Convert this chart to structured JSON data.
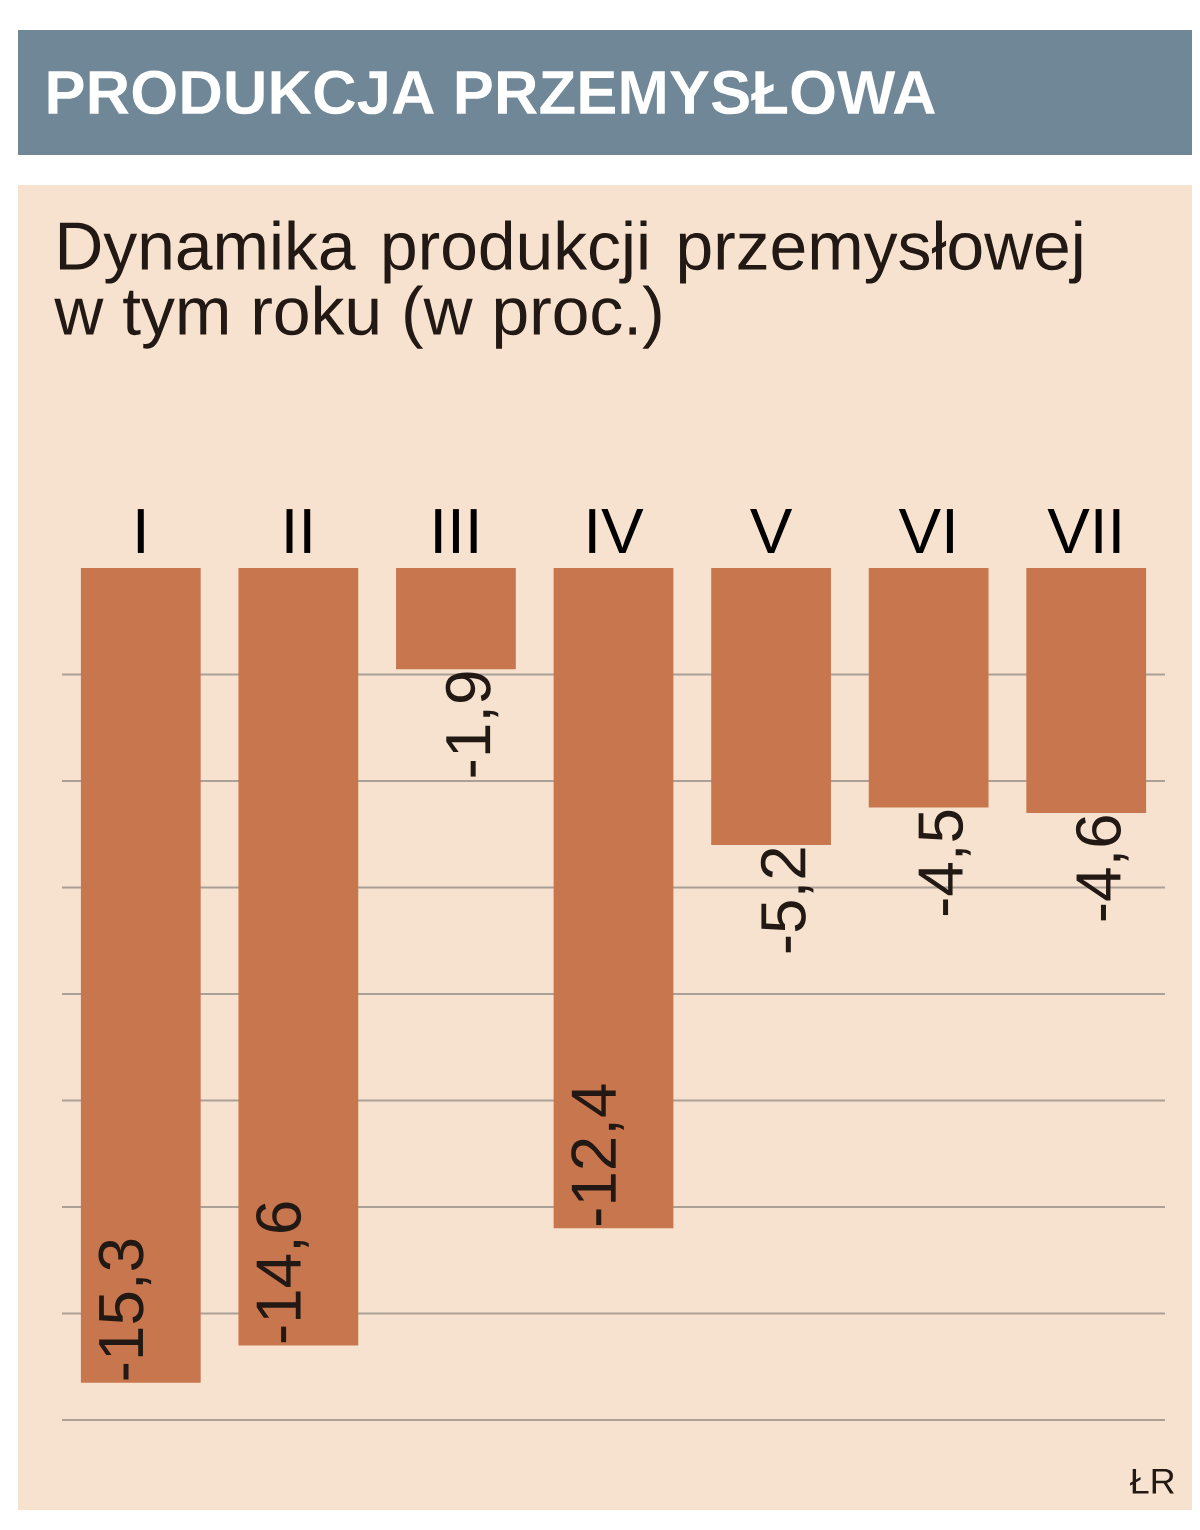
{
  "chart_data": {
    "type": "bar",
    "title": "PRODUKCJA PRZEMYSŁOWA",
    "subtitle": "Dynamika produkcji przemysłowej w tym roku (w proc.)",
    "categories": [
      "I",
      "II",
      "III",
      "IV",
      "V",
      "VI",
      "VII"
    ],
    "values": [
      -15.3,
      -14.6,
      -1.9,
      -12.4,
      -5.2,
      -4.5,
      -4.6
    ],
    "value_labels": [
      "-15,3",
      "-14,6",
      "-1,9",
      "-12,4",
      "-5,2",
      "-4,5",
      "-4,6"
    ],
    "color": "#c8764e",
    "ylim": [
      -16,
      0
    ],
    "yticks": [
      {
        "value": -16,
        "label": null
      },
      {
        "value": -14,
        "label": null
      },
      {
        "value": -12,
        "label": null
      },
      {
        "value": -10,
        "label": null
      },
      {
        "value": -8,
        "label": null
      },
      {
        "value": -6,
        "label": null
      },
      {
        "value": -4,
        "label": null
      },
      {
        "value": -2,
        "label": null
      }
    ],
    "grid": "y",
    "tick_labels": "x",
    "annotations": [
      "ŁR"
    ]
  }
}
